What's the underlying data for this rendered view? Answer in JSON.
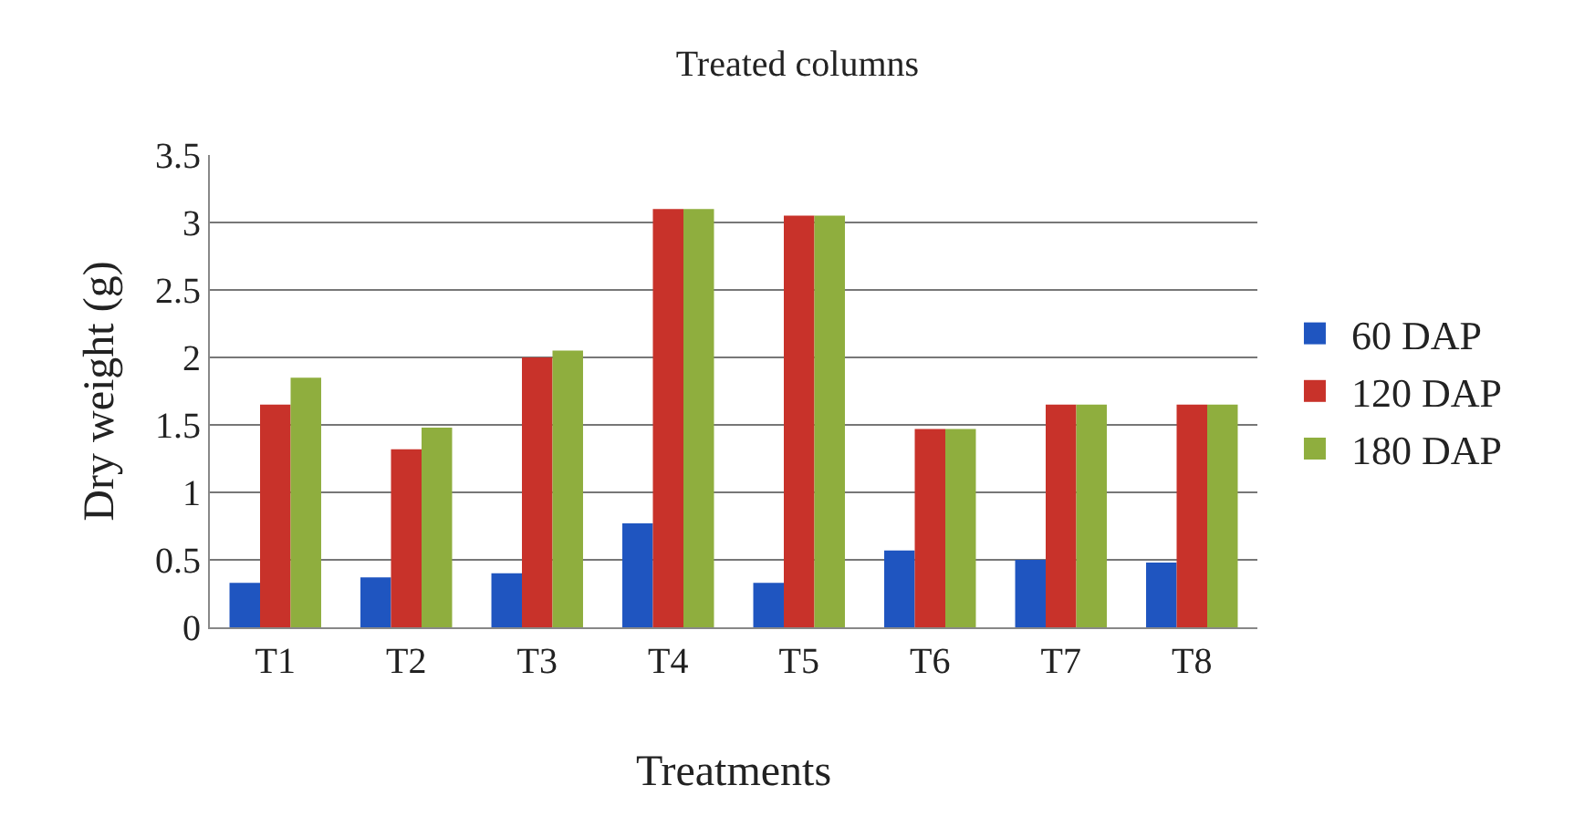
{
  "chart_data": {
    "type": "bar",
    "title": "Treated columns",
    "xlabel": "Treatments",
    "ylabel": "Dry weight (g)",
    "categories": [
      "T1",
      "T2",
      "T3",
      "T4",
      "T5",
      "T6",
      "T7",
      "T8"
    ],
    "series": [
      {
        "name": "60 DAP",
        "color": "#1f55c0",
        "values": [
          0.33,
          0.37,
          0.4,
          0.77,
          0.33,
          0.57,
          0.5,
          0.48
        ]
      },
      {
        "name": "120 DAP",
        "color": "#c8322a",
        "values": [
          1.65,
          1.32,
          2.0,
          3.1,
          3.05,
          1.47,
          1.65,
          1.65
        ]
      },
      {
        "name": "180 DAP",
        "color": "#8fae3e",
        "values": [
          1.85,
          1.48,
          2.05,
          3.1,
          3.05,
          1.47,
          1.65,
          1.65
        ]
      }
    ],
    "ylim": [
      0,
      3.5
    ],
    "yticks": [
      0,
      0.5,
      1,
      1.5,
      2,
      2.5,
      3,
      3.5
    ],
    "grid": "y",
    "legend": "right"
  }
}
